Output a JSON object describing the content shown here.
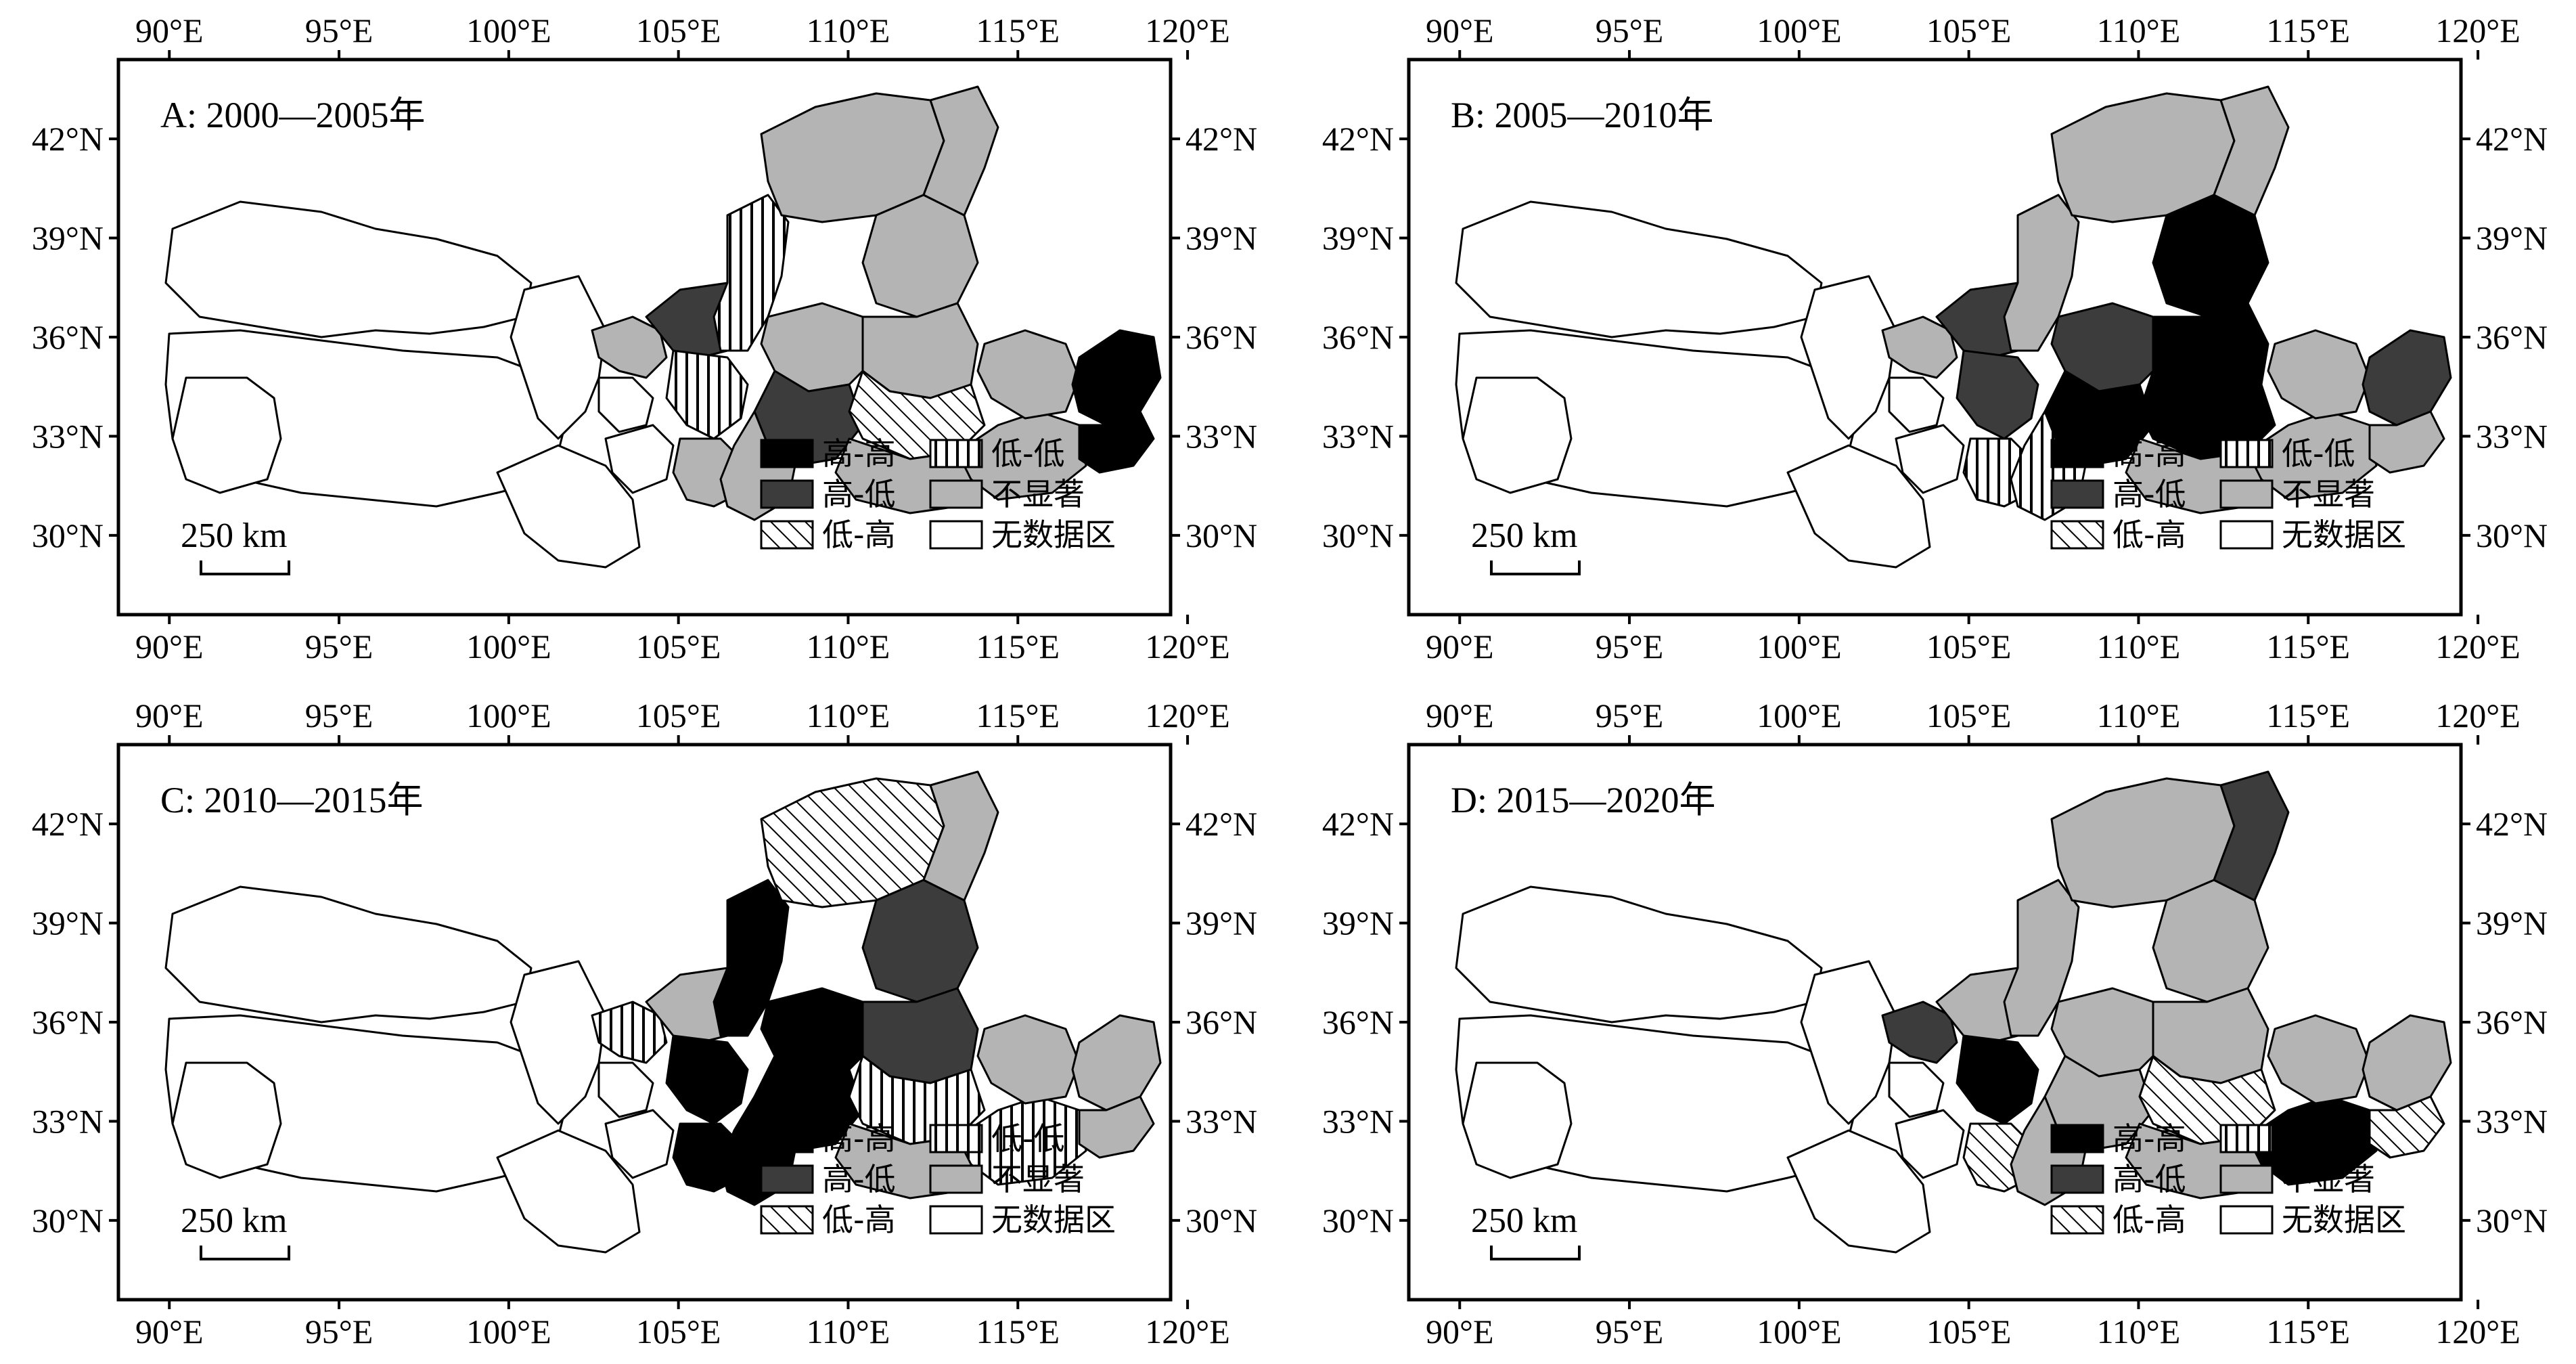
{
  "colors": {
    "high_high": "#000000",
    "high_low": "#3c3c3c",
    "low_high": "#ffffff",
    "low_low": "#ffffff",
    "not_significant": "#b4b4b4",
    "no_data": "#ffffff",
    "border": "#000000"
  },
  "axes": {
    "lon_ticks": [
      "90°E",
      "95°E",
      "100°E",
      "105°E",
      "110°E",
      "115°E",
      "120°E"
    ],
    "lat_ticks": [
      "42°N",
      "39°N",
      "36°N",
      "33°N",
      "30°N"
    ]
  },
  "legend": [
    {
      "key": "high_high",
      "label": "高-高",
      "pattern": "solid-black"
    },
    {
      "key": "low_low",
      "label": "低-低",
      "pattern": "vertical-hatch"
    },
    {
      "key": "high_low",
      "label": "高-低",
      "pattern": "solid-darkgray"
    },
    {
      "key": "not_significant",
      "label": "不显著",
      "pattern": "solid-lightgray"
    },
    {
      "key": "low_high",
      "label": "低-高",
      "pattern": "diagonal-hatch"
    },
    {
      "key": "no_data",
      "label": "无数据区",
      "pattern": "white"
    }
  ],
  "scale_bar": "250 km",
  "panels": [
    {
      "id": "A",
      "title": "A: 2000—2005年"
    },
    {
      "id": "B",
      "title": "B: 2005—2010年"
    },
    {
      "id": "C",
      "title": "C: 2010—2015年"
    },
    {
      "id": "D",
      "title": "D: 2015—2020年"
    }
  ]
}
